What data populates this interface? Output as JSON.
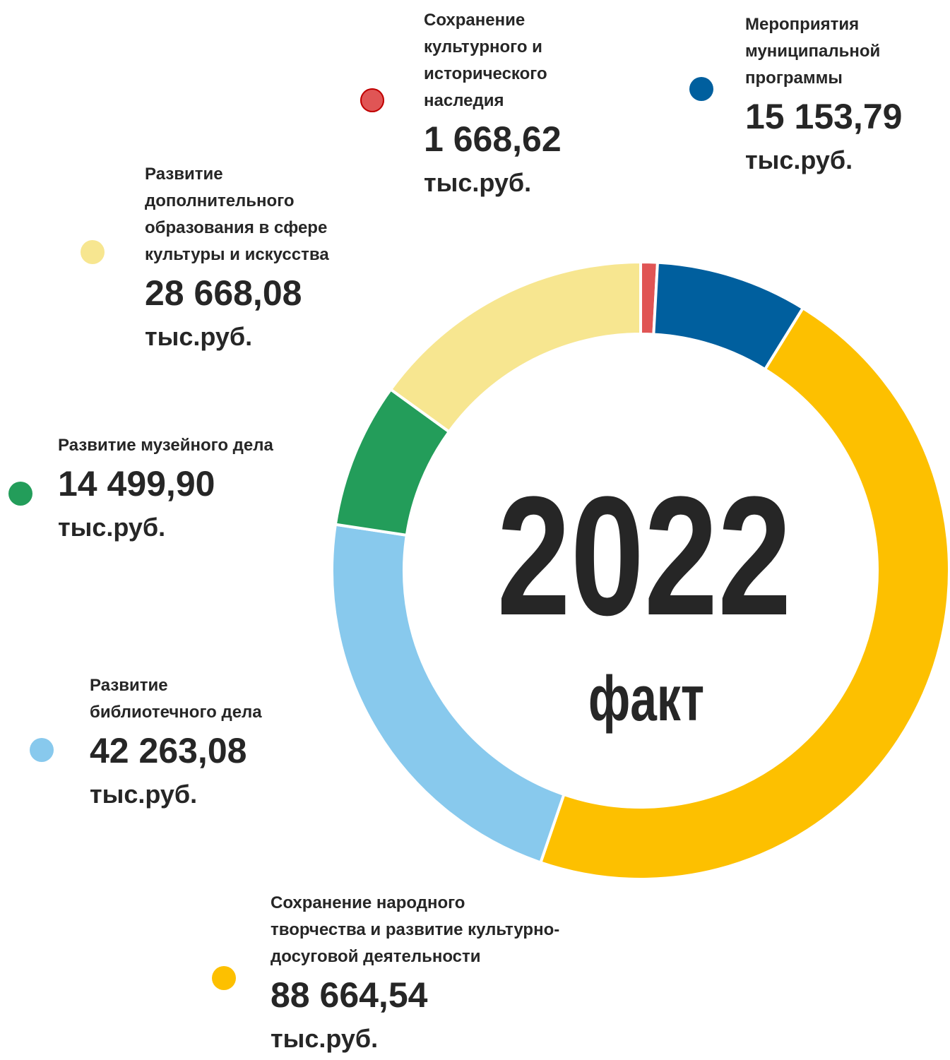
{
  "chart_data": {
    "type": "donut",
    "center_label": "2022",
    "center_sublabel": "факт",
    "unit": "тыс.руб.",
    "categories": [
      "Сохранение\nкультурного и\nисторического\nнаследия",
      "Мероприятия\nмуниципальной\nпрограммы",
      "Сохранение народного\nтворчества и развитие культурно-\nдосуговой деятельности",
      "Развитие\nбиблиотечного дела",
      "Развитие музейного дела",
      "Развитие\nдополнительного\nобразования в сфере\nкультуры и искусства"
    ],
    "values": [
      1668.62,
      15153.79,
      88664.54,
      42263.08,
      14499.9,
      28668.08
    ],
    "value_labels": [
      "1 668,62",
      "15 153,79",
      "88 664,54",
      "42 263,08",
      "14 499,90",
      "28 668,08"
    ],
    "colors": [
      "#e05555",
      "#005f9e",
      "#fdc000",
      "#88c9ed",
      "#239d5a",
      "#f7e690"
    ]
  }
}
